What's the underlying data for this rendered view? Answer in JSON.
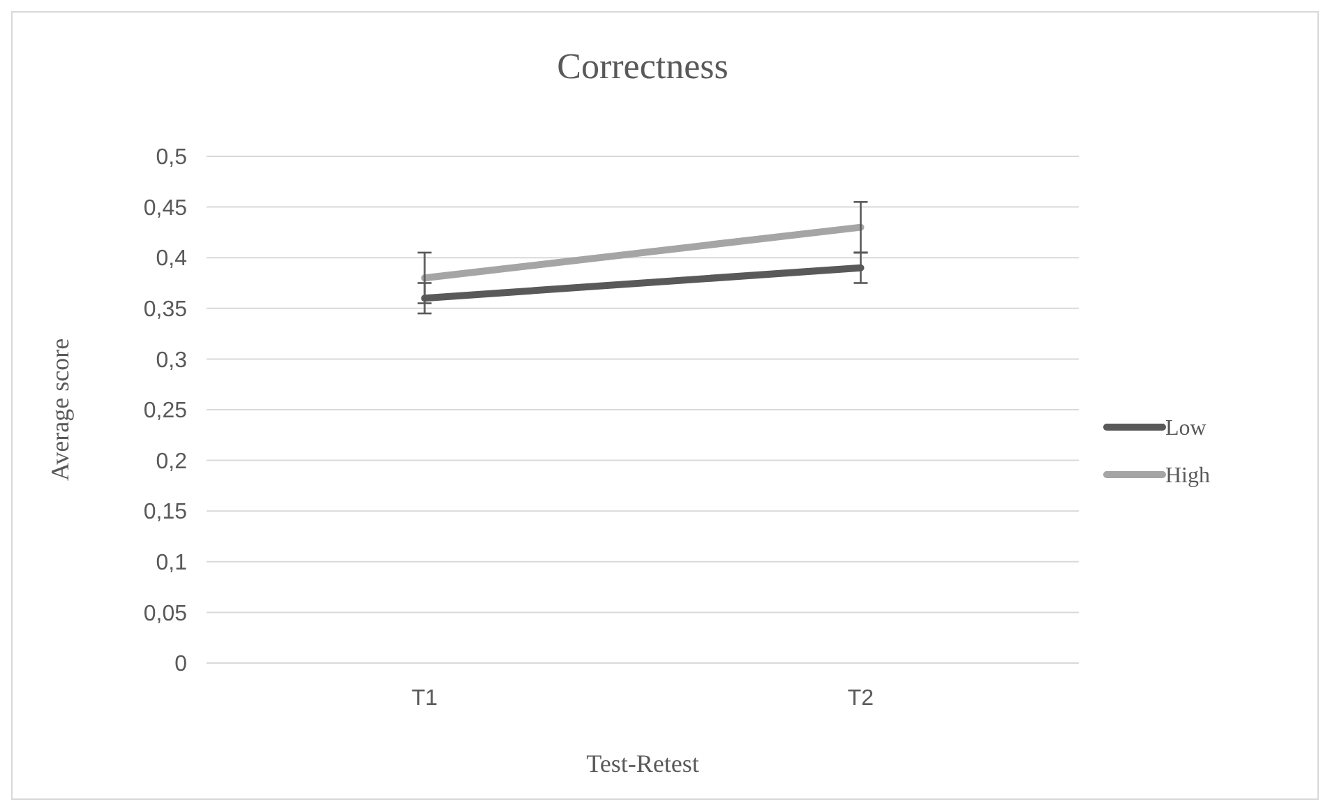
{
  "chart_data": {
    "type": "line",
    "title": "Correctness",
    "xlabel": "Test-Retest",
    "ylabel": "Average score",
    "categories": [
      "T1",
      "T2"
    ],
    "series": [
      {
        "name": "Low",
        "color": "#595959",
        "values": [
          0.36,
          0.39
        ],
        "errors": [
          0.015,
          0.015
        ]
      },
      {
        "name": "High",
        "color": "#a5a5a5",
        "values": [
          0.38,
          0.43
        ],
        "errors": [
          0.025,
          0.025
        ]
      }
    ],
    "ylim": [
      0,
      0.5
    ],
    "yticks": [
      {
        "value": 0,
        "label": "0"
      },
      {
        "value": 0.05,
        "label": "0,05"
      },
      {
        "value": 0.1,
        "label": "0,1"
      },
      {
        "value": 0.15,
        "label": "0,15"
      },
      {
        "value": 0.2,
        "label": "0,2"
      },
      {
        "value": 0.25,
        "label": "0,25"
      },
      {
        "value": 0.3,
        "label": "0,3"
      },
      {
        "value": 0.35,
        "label": "0,35"
      },
      {
        "value": 0.4,
        "label": "0,4"
      },
      {
        "value": 0.45,
        "label": "0,45"
      },
      {
        "value": 0.5,
        "label": "0,5"
      }
    ],
    "grid": "y",
    "legend": "right",
    "marker": "none",
    "line_style": "solid"
  }
}
